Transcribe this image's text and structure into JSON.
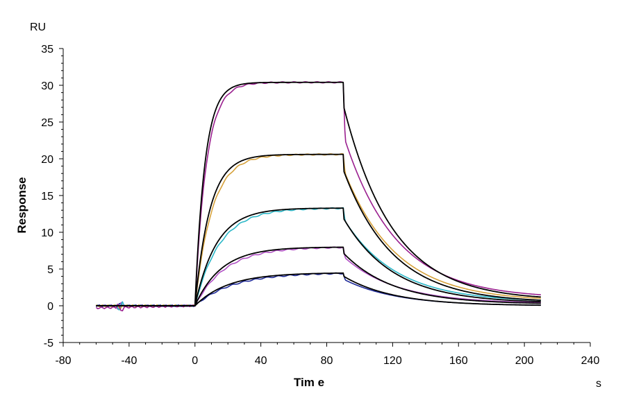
{
  "chart_data": {
    "type": "line",
    "title": "",
    "xlabel": "Tim e",
    "xunit": "s",
    "ylabel": "Response",
    "yunit": "RU",
    "xlim": [
      -80,
      240
    ],
    "ylim": [
      -5,
      35
    ],
    "xticks": [
      -80,
      -40,
      0,
      40,
      80,
      120,
      160,
      200,
      240
    ],
    "yticks": [
      -5,
      0,
      5,
      10,
      15,
      20,
      25,
      30,
      35
    ],
    "grid": false,
    "legend": "none",
    "kinetics": {
      "baseline_start": -60,
      "injection_start": 0,
      "injection_end": 90,
      "run_end": 210,
      "association_tau_s": [
        20,
        16,
        13,
        9,
        6
      ],
      "dissociation_tau_s": [
        30
      ]
    },
    "series": [
      {
        "plateau": 4.5,
        "color": "#1f2a99",
        "x": [
          -60,
          0,
          90,
          91,
          210
        ],
        "y": [
          0.0,
          0.0,
          4.5,
          3.5,
          0.0
        ]
      },
      {
        "plateau": 8.0,
        "color": "#b04fc4",
        "x": [
          -60,
          0,
          90,
          91,
          210
        ],
        "y": [
          0.0,
          0.0,
          8.0,
          6.5,
          0.3
        ]
      },
      {
        "plateau": 13.3,
        "color": "#2bb7c7",
        "x": [
          -60,
          0,
          90,
          91,
          210
        ],
        "y": [
          0.0,
          0.0,
          13.3,
          11.5,
          0.5
        ]
      },
      {
        "plateau": 20.6,
        "color": "#d6a13a",
        "x": [
          -60,
          0,
          90,
          91,
          210
        ],
        "y": [
          0.0,
          0.0,
          20.6,
          18.0,
          0.6
        ]
      },
      {
        "plateau": 30.4,
        "color": "#9a1f8f",
        "x": [
          -60,
          0,
          90,
          91,
          210
        ],
        "y": [
          -0.3,
          0.0,
          30.6,
          22.5,
          1.0
        ]
      }
    ]
  }
}
